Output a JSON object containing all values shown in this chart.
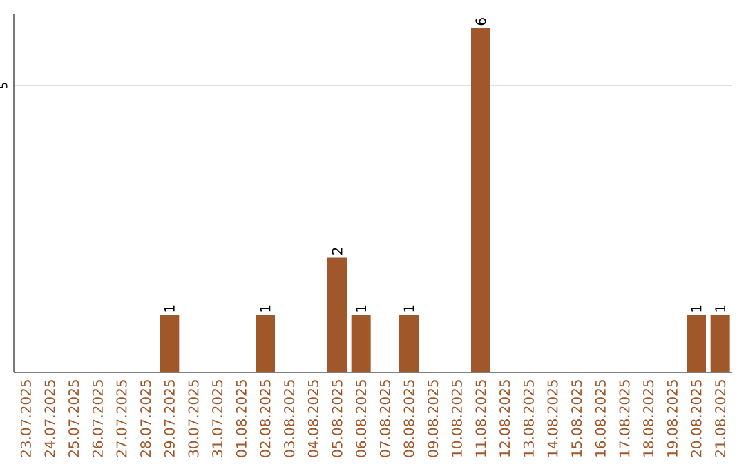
{
  "chart_data": {
    "type": "bar",
    "categories": [
      "23.07.2025",
      "24.07.2025",
      "25.07.2025",
      "26.07.2025",
      "27.07.2025",
      "28.07.2025",
      "29.07.2025",
      "30.07.2025",
      "31.07.2025",
      "01.08.2025",
      "02.08.2025",
      "03.08.2025",
      "04.08.2025",
      "05.08.2025",
      "06.08.2025",
      "07.08.2025",
      "08.08.2025",
      "09.08.2025",
      "10.08.2025",
      "11.08.2025",
      "12.08.2025",
      "13.08.2025",
      "14.08.2025",
      "15.08.2025",
      "16.08.2025",
      "17.08.2025",
      "18.08.2025",
      "19.08.2025",
      "20.08.2025",
      "21.08.2025"
    ],
    "values": [
      0,
      0,
      0,
      0,
      0,
      0,
      1,
      0,
      0,
      0,
      1,
      0,
      0,
      2,
      1,
      0,
      1,
      0,
      0,
      6,
      0,
      0,
      0,
      0,
      0,
      0,
      0,
      0,
      1,
      1
    ],
    "value_labels": [
      null,
      null,
      null,
      null,
      null,
      null,
      "1",
      null,
      null,
      null,
      "1",
      null,
      null,
      "2",
      "1",
      null,
      "1",
      null,
      null,
      "6",
      null,
      null,
      null,
      null,
      null,
      null,
      null,
      null,
      "1",
      "1"
    ],
    "color": "#a0572a",
    "ylim": [
      0,
      6.25
    ],
    "yticks": [
      5
    ],
    "grid": "y"
  }
}
